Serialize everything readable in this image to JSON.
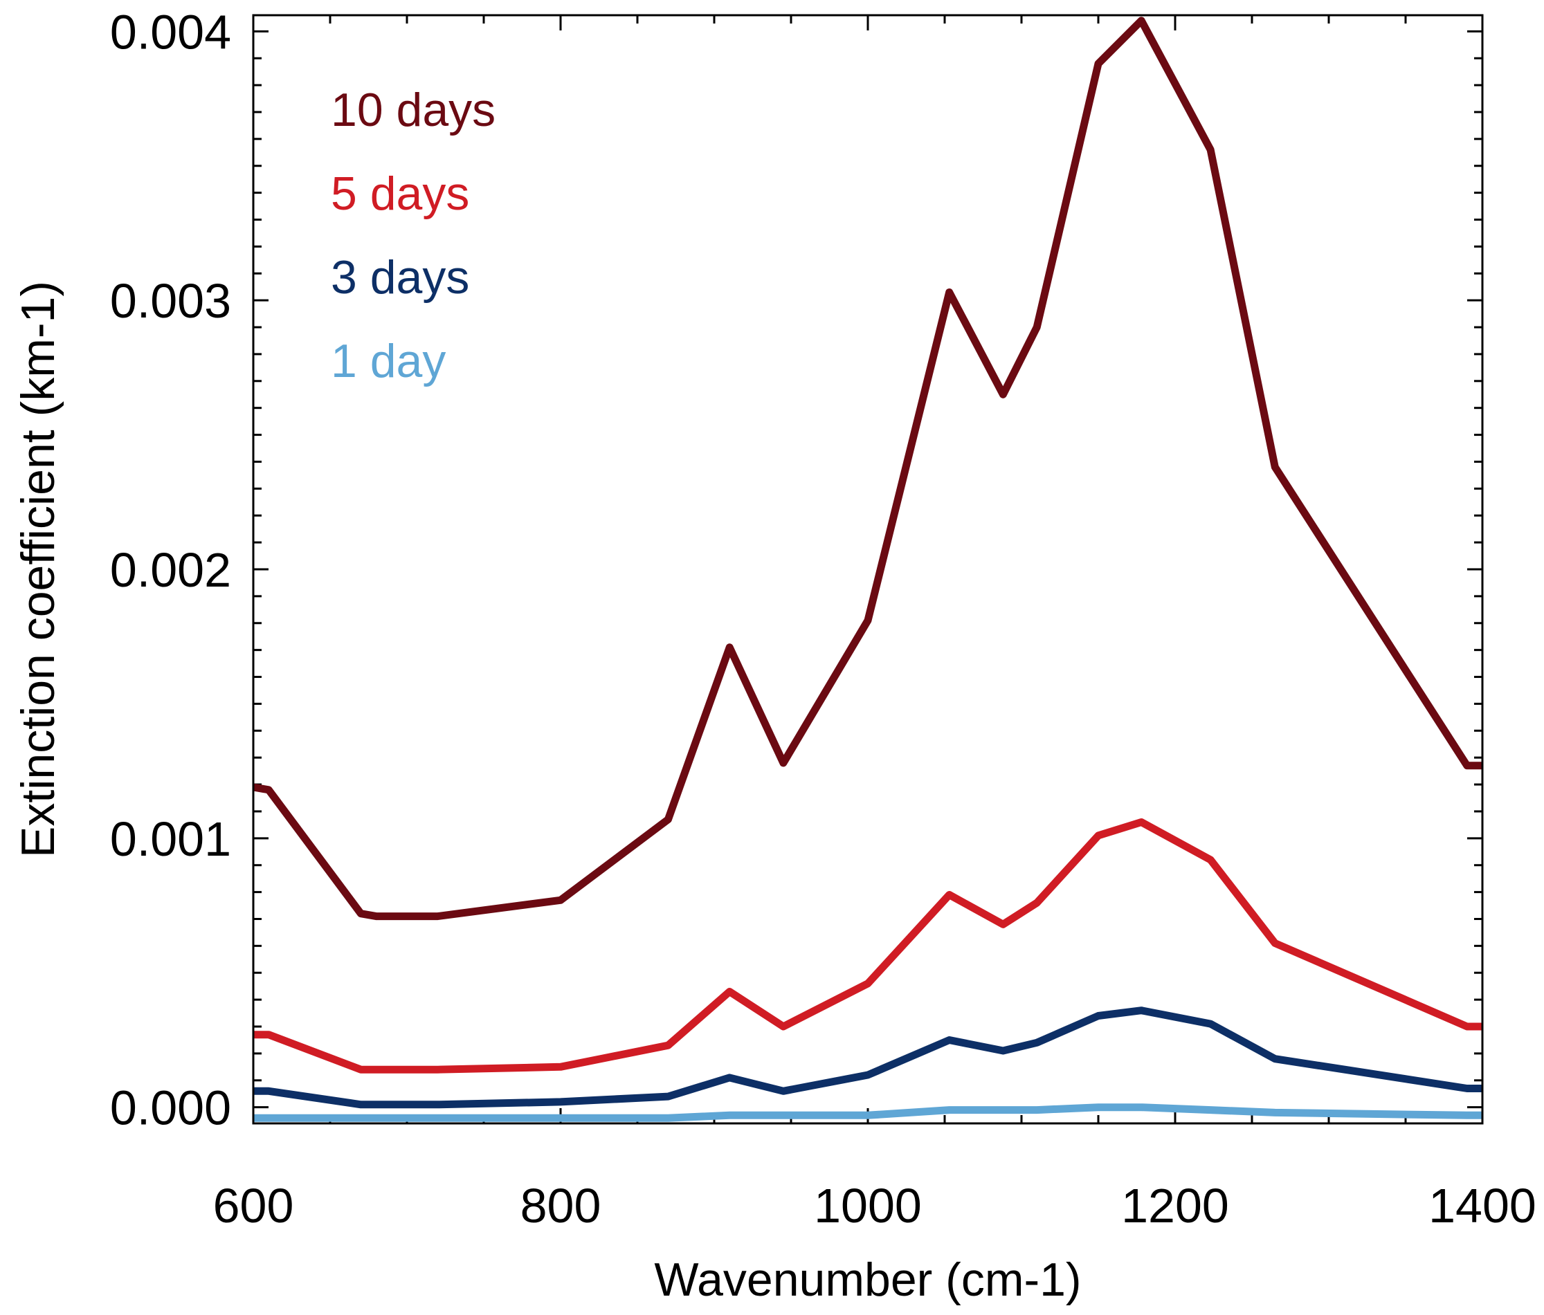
{
  "chart_data": {
    "type": "line",
    "title": "",
    "xlabel": "Wavenumber (cm-1)",
    "ylabel": "Extinction coefficient (km-1)",
    "xlim": [
      600,
      1400
    ],
    "ylim": [
      -6e-05,
      0.00406
    ],
    "x_ticks": [
      600,
      800,
      1000,
      1200,
      1400
    ],
    "x_tick_labels": [
      "600",
      "800",
      "1000",
      "1200",
      "1400"
    ],
    "x_minor_step": 50,
    "y_ticks": [
      0,
      0.001,
      0.002,
      0.003,
      0.004
    ],
    "y_tick_labels": [
      "0.000",
      "0.001",
      "0.002",
      "0.003",
      "0.004"
    ],
    "y_minor_step": 0.0001,
    "grid": false,
    "legend_position": "top-left",
    "x": [
      600,
      610,
      670,
      680,
      720,
      800,
      870,
      910,
      945,
      1000,
      1053,
      1088,
      1110,
      1150,
      1178,
      1223,
      1265,
      1390,
      1400
    ],
    "series": [
      {
        "name": "10 days",
        "color": "#6b0a12",
        "values": [
          0.00119,
          0.00118,
          0.00072,
          0.00071,
          0.00071,
          0.00077,
          0.00107,
          0.00171,
          0.00128,
          0.00181,
          0.00303,
          0.00265,
          0.0029,
          0.00388,
          0.00404,
          0.00356,
          0.00238,
          0.00127,
          0.00127
        ]
      },
      {
        "name": "5 days",
        "color": "#d01c24",
        "values": [
          0.00027,
          0.00027,
          0.00014,
          0.00014,
          0.00014,
          0.00015,
          0.00023,
          0.00043,
          0.0003,
          0.00046,
          0.00079,
          0.00068,
          0.00076,
          0.00101,
          0.00106,
          0.00092,
          0.00061,
          0.0003,
          0.0003
        ]
      },
      {
        "name": "3 days",
        "color": "#0d2f66",
        "values": [
          6e-05,
          6e-05,
          1e-05,
          1e-05,
          1e-05,
          2e-05,
          4e-05,
          0.00011,
          6e-05,
          0.00012,
          0.00025,
          0.00021,
          0.00024,
          0.00034,
          0.00036,
          0.00031,
          0.00018,
          7e-05,
          7e-05
        ]
      },
      {
        "name": "1 day",
        "color": "#5fa6d5",
        "values": [
          -4e-05,
          -4e-05,
          -4e-05,
          -4e-05,
          -4e-05,
          -4e-05,
          -4e-05,
          -3e-05,
          -3e-05,
          -3e-05,
          -1e-05,
          -1e-05,
          -1e-05,
          0.0,
          0.0,
          -1e-05,
          -2e-05,
          -3e-05,
          -3e-05
        ]
      }
    ]
  }
}
